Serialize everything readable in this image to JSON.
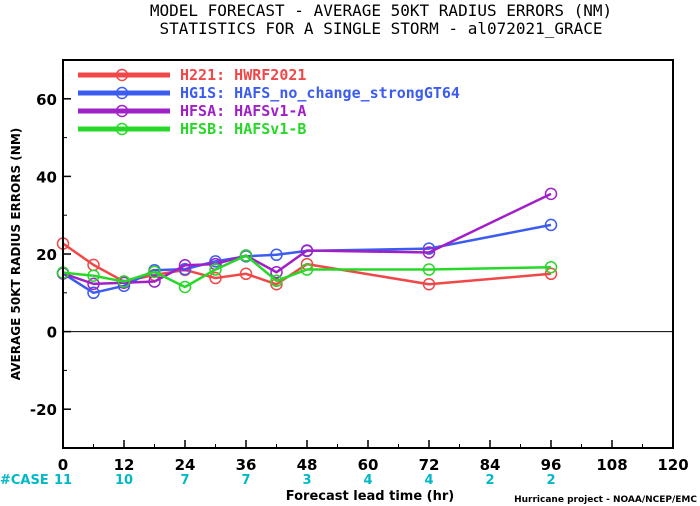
{
  "chart_data": {
    "type": "line",
    "title": "MODEL FORECAST - AVERAGE 50KT RADIUS ERRORS (NM)",
    "subtitle": "STATISTICS FOR A SINGLE STORM - al072021_GRACE",
    "xlabel": "Forecast lead time (hr)",
    "ylabel": "AVERAGE 50KT RADIUS ERRORS (NM)",
    "xlim": [
      0,
      120
    ],
    "ylim": [
      -30,
      70
    ],
    "xticks": [
      0,
      12,
      24,
      36,
      48,
      60,
      72,
      84,
      96,
      108,
      120
    ],
    "yticks": [
      -20,
      0,
      20,
      40,
      60
    ],
    "zero_line": true,
    "legend_position": "top-left",
    "case_label": "#CASE",
    "cases": [
      {
        "x": 0,
        "n": "11"
      },
      {
        "x": 12,
        "n": "10"
      },
      {
        "x": 24,
        "n": "7"
      },
      {
        "x": 36,
        "n": "7"
      },
      {
        "x": 48,
        "n": "3"
      },
      {
        "x": 60,
        "n": "4"
      },
      {
        "x": 72,
        "n": "4"
      },
      {
        "x": 84,
        "n": "2"
      },
      {
        "x": 96,
        "n": "2"
      }
    ],
    "credit": "Hurricane project - NOAA/NCEP/EMC",
    "series": [
      {
        "name": "H221: HWRF2021",
        "color": "#f04848",
        "x": [
          0,
          6,
          12,
          18,
          24,
          30,
          36,
          42,
          48,
          72,
          96
        ],
        "y": [
          22.7,
          17.2,
          12.9,
          14.6,
          15.9,
          13.8,
          14.9,
          12.2,
          17.4,
          12.2,
          14.9
        ]
      },
      {
        "name": "HG1S: HAFS_no_change_strongGT64",
        "color": "#3c5cf0",
        "x": [
          0,
          6,
          12,
          18,
          24,
          30,
          36,
          42,
          48,
          72,
          96
        ],
        "y": [
          15.0,
          10.0,
          11.8,
          15.8,
          16.1,
          18.1,
          19.4,
          19.8,
          20.8,
          21.4,
          27.5
        ]
      },
      {
        "name": "HFSA: HAFSv1-A",
        "color": "#a020c8",
        "x": [
          0,
          6,
          12,
          18,
          24,
          30,
          36,
          42,
          48,
          72,
          96
        ],
        "y": [
          15.0,
          12.3,
          12.6,
          12.9,
          17.1,
          17.4,
          19.6,
          15.3,
          20.9,
          20.4,
          35.5
        ]
      },
      {
        "name": "HFSB: HAFSv1-B",
        "color": "#28d828",
        "x": [
          0,
          6,
          12,
          18,
          24,
          30,
          36,
          42,
          48,
          72,
          96
        ],
        "y": [
          15.2,
          14.4,
          12.9,
          15.4,
          11.5,
          16.0,
          19.6,
          13.1,
          16.0,
          16.0,
          16.6
        ]
      }
    ]
  }
}
